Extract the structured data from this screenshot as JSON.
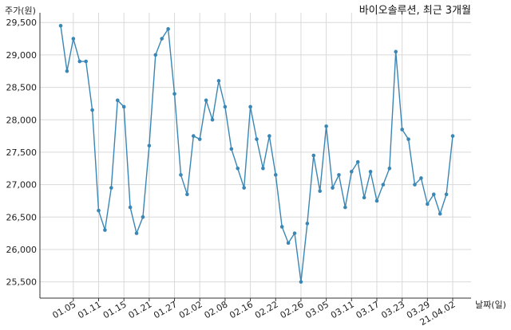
{
  "chart_data": {
    "type": "line",
    "title": "바이오솔루션, 최근 3개월",
    "ylabel": "주가(원)",
    "xlabel": "날짜(일)",
    "ylim": [
      25250,
      29650
    ],
    "yticks": [
      25500,
      26000,
      26500,
      27000,
      27500,
      28000,
      28500,
      29000,
      29500
    ],
    "ytick_labels": [
      "25,500",
      "26,000",
      "26,500",
      "27,000",
      "27,500",
      "28,000",
      "28,500",
      "29,000",
      "29,500"
    ],
    "xtick_labels": [
      "01.05",
      "01.11",
      "01.15",
      "01.21",
      "01.27",
      "02.02",
      "02.08",
      "02.16",
      "02.22",
      "02.26",
      "03.05",
      "03.11",
      "03.17",
      "03.23",
      "03.29",
      "21.04.02"
    ],
    "xtick_indices": [
      2,
      6,
      10,
      14,
      18,
      22,
      26,
      30,
      34,
      38,
      42,
      46,
      50,
      54,
      58,
      62
    ],
    "grid": true,
    "color": "#3a86b4",
    "series": [
      {
        "values": [
          29450,
          28750,
          29250,
          28900,
          28900,
          28150,
          26600,
          26300,
          26950,
          28300,
          28200,
          26650,
          26250,
          26500,
          27600,
          29000,
          29250,
          29400,
          28400,
          27150,
          26850,
          27750,
          27700,
          28300,
          28000,
          28600,
          28200,
          27550,
          27250,
          26950,
          28200,
          27700,
          27250,
          27750,
          27150,
          26350,
          26100,
          26250,
          25500,
          26400,
          27450,
          26900,
          27900,
          26950,
          27150,
          26650,
          27200,
          27350,
          26800,
          27200,
          26750,
          27000,
          27250,
          29050,
          27850,
          27700,
          27000,
          27100,
          26700,
          26850,
          26550,
          26850,
          27750
        ]
      }
    ]
  }
}
